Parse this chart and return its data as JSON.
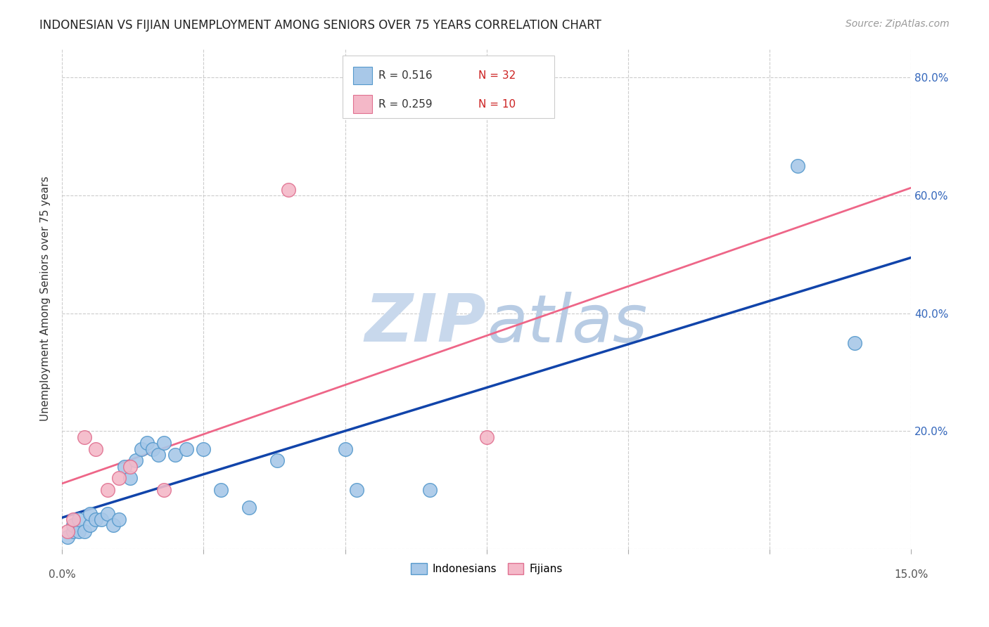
{
  "title": "INDONESIAN VS FIJIAN UNEMPLOYMENT AMONG SENIORS OVER 75 YEARS CORRELATION CHART",
  "source": "Source: ZipAtlas.com",
  "ylabel": "Unemployment Among Seniors over 75 years",
  "xlim": [
    0.0,
    0.15
  ],
  "ylim": [
    0.0,
    0.85
  ],
  "yticks": [
    0.0,
    0.2,
    0.4,
    0.6,
    0.8
  ],
  "ytick_labels": [
    "",
    "20.0%",
    "40.0%",
    "60.0%",
    "80.0%"
  ],
  "indonesian_x": [
    0.001,
    0.002,
    0.002,
    0.003,
    0.003,
    0.004,
    0.005,
    0.005,
    0.006,
    0.007,
    0.008,
    0.009,
    0.01,
    0.011,
    0.012,
    0.013,
    0.014,
    0.015,
    0.016,
    0.017,
    0.018,
    0.02,
    0.022,
    0.025,
    0.028,
    0.033,
    0.038,
    0.05,
    0.052,
    0.065,
    0.13,
    0.14
  ],
  "indonesian_y": [
    0.02,
    0.03,
    0.04,
    0.03,
    0.05,
    0.03,
    0.04,
    0.06,
    0.05,
    0.05,
    0.06,
    0.04,
    0.05,
    0.14,
    0.12,
    0.15,
    0.17,
    0.18,
    0.17,
    0.16,
    0.18,
    0.16,
    0.17,
    0.17,
    0.1,
    0.07,
    0.15,
    0.17,
    0.1,
    0.1,
    0.65,
    0.35
  ],
  "fijian_x": [
    0.001,
    0.002,
    0.004,
    0.006,
    0.008,
    0.01,
    0.012,
    0.018,
    0.04,
    0.075
  ],
  "fijian_y": [
    0.03,
    0.05,
    0.19,
    0.17,
    0.1,
    0.12,
    0.14,
    0.1,
    0.61,
    0.19
  ],
  "indonesian_color": "#a8c8e8",
  "indonesian_edge_color": "#5599cc",
  "fijian_color": "#f4b8c8",
  "fijian_edge_color": "#e07090",
  "trend_indonesian_color": "#1144aa",
  "trend_fijian_color": "#ee6688",
  "watermark_zip_color": "#d0dce8",
  "watermark_atlas_color": "#c8d8e8",
  "background_color": "#ffffff",
  "grid_color": "#cccccc"
}
